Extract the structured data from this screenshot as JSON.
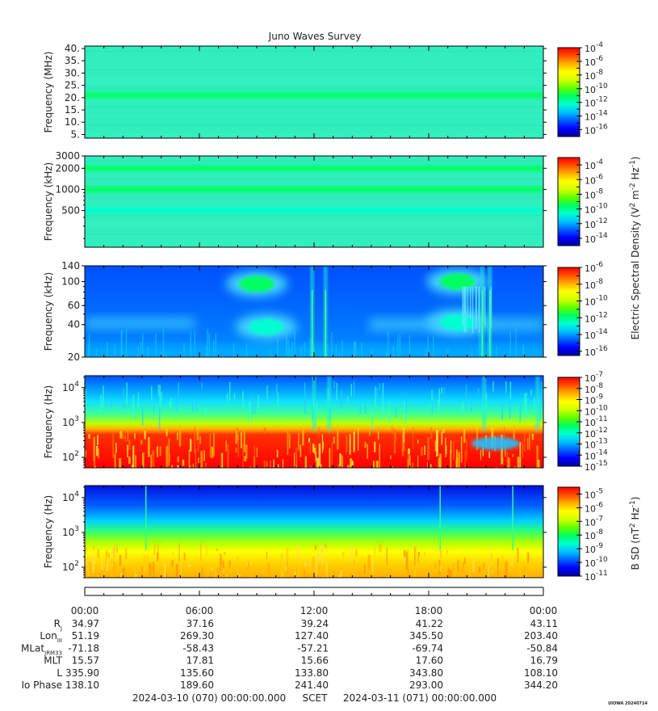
{
  "title": "Juno Waves Survey",
  "colors": {
    "colormap": [
      "#0000a0",
      "#0000ff",
      "#0060ff",
      "#00c0ff",
      "#00ffd0",
      "#00ff60",
      "#60ff00",
      "#d0ff00",
      "#ffff00",
      "#ffb000",
      "#ff5000",
      "#ff0000"
    ],
    "background_field": "#2ff0c0"
  },
  "chart_data": [
    {
      "type": "heatmap",
      "name": "panel-1",
      "ylabel": "Frequency (MHz)",
      "ylim": [
        3.5,
        41
      ],
      "yscale": "linear",
      "yticks": [
        5,
        10,
        15,
        20,
        25,
        30,
        35,
        40
      ],
      "ytick_labels": [
        "5.",
        "10.",
        "15.",
        "20.",
        "25.",
        "30.",
        "35.",
        "40."
      ],
      "bands": [
        {
          "freq": 21,
          "level": 5
        }
      ],
      "colorbar_labels": [
        "-4",
        "-6",
        "-8",
        "-10",
        "-12",
        "-14",
        "-16"
      ],
      "colorbar_range": [
        -17,
        -4
      ]
    },
    {
      "type": "heatmap",
      "name": "panel-2",
      "ylabel": "Frequency (kHz)",
      "ylim": [
        150,
        3000
      ],
      "yscale": "log",
      "yticks": [
        500,
        1000,
        2000,
        3000
      ],
      "ytick_labels": [
        "500",
        "1000",
        "2000",
        "3000"
      ],
      "bands": [
        {
          "freq": 2000,
          "level": 5
        },
        {
          "freq": 1000,
          "level": 5
        },
        {
          "freq": 500,
          "level": 4
        }
      ],
      "colorbar_labels": [
        "-4",
        "-6",
        "-8",
        "-10",
        "-12",
        "-14"
      ],
      "colorbar_range": [
        -15,
        -3
      ]
    },
    {
      "type": "heatmap",
      "name": "panel-3",
      "ylabel": "Frequency (kHz)",
      "ylim": [
        20,
        140
      ],
      "yscale": "log",
      "yticks": [
        20,
        40,
        60,
        100,
        140
      ],
      "ytick_labels": [
        "20",
        "40",
        "60",
        "100",
        "140"
      ],
      "blobs": [
        {
          "hour": 9.0,
          "freq": 95,
          "level": 5
        },
        {
          "hour": 9.5,
          "freq": 38,
          "level": 4
        },
        {
          "hour": 19.5,
          "freq": 100,
          "level": 5
        },
        {
          "hour": 19.5,
          "freq": 42,
          "level": 4
        }
      ],
      "spikes": [
        11.9,
        12.6,
        20.8,
        21.2
      ],
      "colorbar_labels": [
        "-6",
        "-8",
        "-10",
        "-12",
        "-14",
        "-16"
      ],
      "colorbar_range": [
        -16.5,
        -6
      ]
    },
    {
      "type": "heatmap",
      "name": "panel-4",
      "ylabel": "Frequency (Hz)",
      "ylim": [
        50,
        22000
      ],
      "yscale": "log",
      "yticks": [
        100,
        1000,
        10000
      ],
      "ytick_labels": [
        "10^2",
        "10^3",
        "10^4"
      ],
      "profile": "lowfreq-intense",
      "spikes": [
        12.0,
        12.8,
        20.9,
        23.7
      ],
      "colorbar_labels": [
        "-7",
        "-8",
        "-9",
        "-10",
        "-11",
        "-12",
        "-13",
        "-14",
        "-15"
      ],
      "colorbar_range": [
        -15,
        -7
      ]
    },
    {
      "type": "heatmap",
      "name": "panel-5",
      "ylabel": "Frequency (Hz)",
      "ylim": [
        50,
        22000
      ],
      "yscale": "log",
      "yticks": [
        100,
        1000,
        10000
      ],
      "ytick_labels": [
        "10^2",
        "10^3",
        "10^4"
      ],
      "profile": "magnetic",
      "spikes": [
        3.2,
        18.6,
        22.4
      ],
      "colorbar_labels": [
        "-5",
        "-6",
        "-7",
        "-8",
        "-9",
        "-10",
        "-11"
      ],
      "colorbar_range": [
        -11,
        -4.5
      ]
    }
  ],
  "colorbar_titles": {
    "electric": "Electric Spectral Density (V^2 m^-2 Hz^-1)",
    "magnetic": "B SD (nT^2 Hz^-1)"
  },
  "ephemeris": {
    "time_labels": [
      "00:00",
      "06:00",
      "12:00",
      "18:00",
      "00:00"
    ],
    "rows": [
      {
        "label": "R",
        "sub": "J",
        "values": [
          "34.97",
          "37.16",
          "39.24",
          "41.22",
          "43.11"
        ]
      },
      {
        "label": "Lon",
        "sub": "III",
        "values": [
          "51.19",
          "269.30",
          "127.40",
          "345.50",
          "203.40"
        ]
      },
      {
        "label": "MLat",
        "sub": "JRM33",
        "values": [
          "-71.18",
          "-58.43",
          "-57.21",
          "-69.74",
          "-50.84"
        ]
      },
      {
        "label": "MLT",
        "sub": "",
        "values": [
          "15.57",
          "17.81",
          "15.66",
          "17.60",
          "16.79"
        ]
      },
      {
        "label": "L",
        "sub": "",
        "values": [
          "335.90",
          "135.60",
          "133.80",
          "343.80",
          "108.10"
        ]
      },
      {
        "label": "Io Phase",
        "sub": "",
        "values": [
          "138.10",
          "189.60",
          "241.40",
          "293.00",
          "344.20"
        ]
      }
    ],
    "footer_start": "2024-03-10 (070) 00:00:00.000",
    "footer_scet": "SCET",
    "footer_end": "2024-03-11 (071) 00:00:00.000",
    "stamp": "UIOWA 20240714"
  }
}
